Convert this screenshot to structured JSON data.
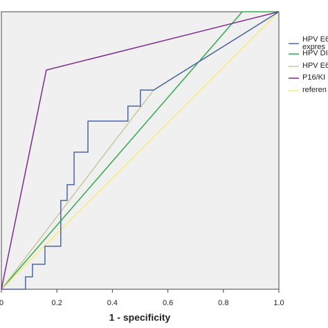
{
  "chart_data": {
    "type": "line",
    "xlabel": "1 - specificity",
    "xlim": [
      0,
      1
    ],
    "ylim": [
      0,
      1
    ],
    "xticks": [
      0,
      0.2,
      0.4,
      0.6,
      0.8,
      {
        "value": 1,
        "label": "1.0"
      }
    ],
    "background": "#f0f0f0",
    "series": [
      {
        "name": "HPV E6 expres",
        "color": "#4a63a8",
        "x": [
          0,
          0.087,
          0.087,
          0.112,
          0.112,
          0.157,
          0.157,
          0.214,
          0.214,
          0.237,
          0.237,
          0.262,
          0.262,
          0.312,
          0.312,
          0.456,
          0.456,
          0.501,
          0.501,
          0.549,
          1
        ],
        "values": [
          0,
          0,
          0.045,
          0.045,
          0.09,
          0.09,
          0.155,
          0.155,
          0.32,
          0.32,
          0.377,
          0.377,
          0.494,
          0.494,
          0.606,
          0.606,
          0.66,
          0.66,
          0.718,
          0.718,
          1
        ]
      },
      {
        "name": "HPV DI",
        "color": "#2faa4a",
        "x": [
          0,
          0.868,
          1
        ],
        "values": [
          0,
          1,
          1
        ]
      },
      {
        "name": "HPV E6",
        "color": "#c9c79e",
        "x": [
          0,
          0.549,
          1
        ],
        "values": [
          0,
          0.718,
          1
        ]
      },
      {
        "name": "P16/KI",
        "color": "#7b2a8e",
        "x": [
          0,
          0.162,
          1
        ],
        "values": [
          0,
          0.79,
          1
        ]
      },
      {
        "name": "referen",
        "color": "#f2ec74",
        "x": [
          0,
          1
        ],
        "values": [
          0,
          1
        ]
      }
    ]
  }
}
